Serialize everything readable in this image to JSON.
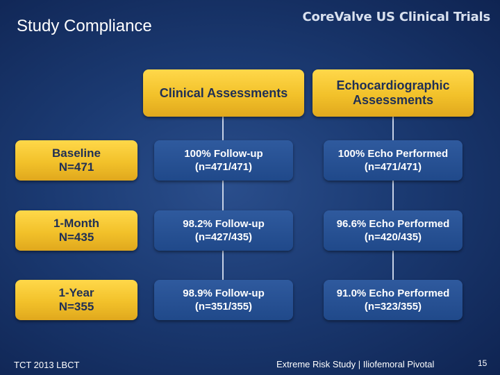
{
  "slide": {
    "title": "Study Compliance",
    "brand": "CoreValve US Clinical Trials"
  },
  "headers": {
    "clinical": "Clinical Assessments",
    "echo_line1": "Echocardiographic",
    "echo_line2": "Assessments"
  },
  "rows": [
    {
      "label_line1": "Baseline",
      "label_line2": "N=471",
      "clinical_line1": "100% Follow-up",
      "clinical_line2": "(n=471/471)",
      "echo_line1": "100% Echo Performed",
      "echo_line2": "(n=471/471)"
    },
    {
      "label_line1": "1-Month",
      "label_line2": "N=435",
      "clinical_line1": "98.2% Follow-up",
      "clinical_line2": "(n=427/435)",
      "echo_line1": "96.6% Echo Performed",
      "echo_line2": "(n=420/435)"
    },
    {
      "label_line1": "1-Year",
      "label_line2": "N=355",
      "clinical_line1": "98.9% Follow-up",
      "clinical_line2": "(n=351/355)",
      "echo_line1": "91.0% Echo Performed",
      "echo_line2": "(n=323/355)"
    }
  ],
  "footer": {
    "left": "TCT 2013 LBCT",
    "center": "Extreme Risk Study | Iliofemoral Pivotal",
    "page_number": "15"
  },
  "colors": {
    "background": "#1b3a72",
    "gold_box": "#f2c12a",
    "blue_box": "#20498a",
    "connector": "#c7d2e6"
  }
}
